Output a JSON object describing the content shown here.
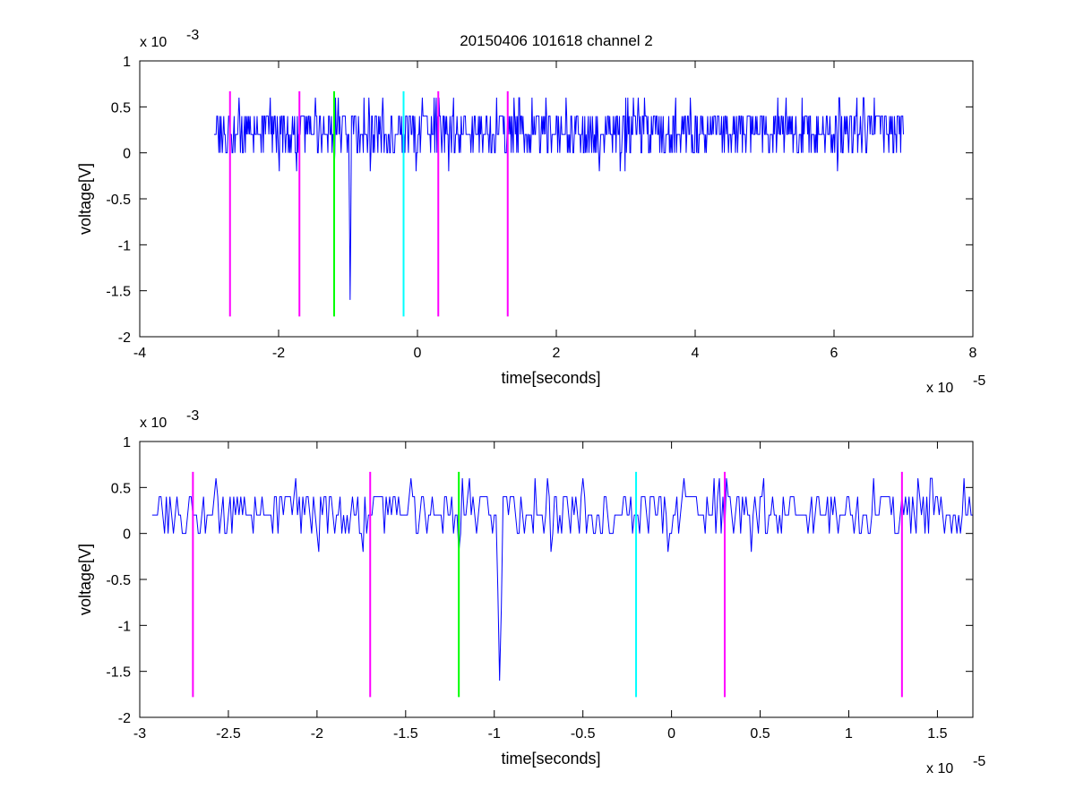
{
  "chart_data": [
    {
      "type": "line",
      "title": "20150406 101618 channel 2",
      "xlabel": "time[seconds]",
      "ylabel": "voltage[V]",
      "x_multiplier": "x 10",
      "x_exponent": "-5",
      "y_multiplier": "x 10",
      "y_exponent": "-3",
      "xlim": [
        -4e-05,
        8e-05
      ],
      "ylim": [
        -0.002,
        0.001
      ],
      "x_ticks": [
        -4e-05,
        -2e-05,
        0,
        2e-05,
        4e-05,
        6e-05,
        8e-05
      ],
      "x_tick_labels": [
        "-4",
        "-2",
        "0",
        "2",
        "4",
        "6",
        "8"
      ],
      "y_ticks": [
        -0.002,
        -0.0015,
        -0.001,
        -0.0005,
        0,
        0.0005,
        0.001
      ],
      "y_tick_labels": [
        "-2",
        "-1.5",
        "-1",
        "-0.5",
        "0",
        "0.5",
        "1"
      ],
      "grid": false,
      "signal": {
        "color": "#0000ff",
        "x_start": -2.93e-05,
        "x_end": 7e-05,
        "baseline": 0.0002,
        "noise_levels": [
          0,
          0.0002,
          0.0004
        ],
        "spikes": [
          {
            "x": -1.2e-05,
            "y": -0.0002
          },
          {
            "x": -9.7e-06,
            "y": -0.0016
          }
        ],
        "peak_max": 0.0006
      },
      "markers": [
        {
          "x": -2.7e-05,
          "y_top": 0.00067,
          "y_bottom": -0.00178,
          "color": "#ff00ff"
        },
        {
          "x": -1.7e-05,
          "y_top": 0.00067,
          "y_bottom": -0.00178,
          "color": "#ff00ff"
        },
        {
          "x": -1.2e-05,
          "y_top": 0.00067,
          "y_bottom": -0.00178,
          "color": "#00ff00"
        },
        {
          "x": -2e-06,
          "y_top": 0.00067,
          "y_bottom": -0.00178,
          "color": "#00ffff"
        },
        {
          "x": 3e-06,
          "y_top": 0.00067,
          "y_bottom": -0.00178,
          "color": "#ff00ff"
        },
        {
          "x": 1.3e-05,
          "y_top": 0.00067,
          "y_bottom": -0.00178,
          "color": "#ff00ff"
        }
      ]
    },
    {
      "type": "line",
      "title": "",
      "xlabel": "time[seconds]",
      "ylabel": "voltage[V]",
      "x_multiplier": "x 10",
      "x_exponent": "-5",
      "y_multiplier": "x 10",
      "y_exponent": "-3",
      "xlim": [
        -3e-05,
        1.7e-05
      ],
      "ylim": [
        -0.002,
        0.001
      ],
      "x_ticks": [
        -3e-05,
        -2.5e-05,
        -2e-05,
        -1.5e-05,
        -1e-05,
        -5e-06,
        0,
        5e-06,
        1e-05,
        1.5e-05
      ],
      "x_tick_labels": [
        "-3",
        "-2.5",
        "-2",
        "-1.5",
        "-1",
        "-0.5",
        "0",
        "0.5",
        "1",
        "1.5"
      ],
      "y_ticks": [
        -0.002,
        -0.0015,
        -0.001,
        -0.0005,
        0,
        0.0005,
        0.001
      ],
      "y_tick_labels": [
        "-2",
        "-1.5",
        "-1",
        "-0.5",
        "0",
        "0.5",
        "1"
      ],
      "grid": false,
      "signal": {
        "color": "#0000ff",
        "x_start": -2.93e-05,
        "x_end": 1.7e-05,
        "baseline": 0.0002,
        "noise_levels": [
          0,
          0.0002,
          0.0004
        ],
        "spikes": [
          {
            "x": -1.2e-05,
            "y": -0.0002
          },
          {
            "x": -9.7e-06,
            "y": -0.0016
          }
        ],
        "peak_max": 0.0006
      },
      "markers": [
        {
          "x": -2.7e-05,
          "y_top": 0.00067,
          "y_bottom": -0.00178,
          "color": "#ff00ff"
        },
        {
          "x": -1.7e-05,
          "y_top": 0.00067,
          "y_bottom": -0.00178,
          "color": "#ff00ff"
        },
        {
          "x": -1.2e-05,
          "y_top": 0.00067,
          "y_bottom": -0.00178,
          "color": "#00ff00"
        },
        {
          "x": -2e-06,
          "y_top": 0.00067,
          "y_bottom": -0.00178,
          "color": "#00ffff"
        },
        {
          "x": 3e-06,
          "y_top": 0.00067,
          "y_bottom": -0.00178,
          "color": "#ff00ff"
        },
        {
          "x": 1.3e-05,
          "y_top": 0.00067,
          "y_bottom": -0.00178,
          "color": "#ff00ff"
        }
      ]
    }
  ]
}
